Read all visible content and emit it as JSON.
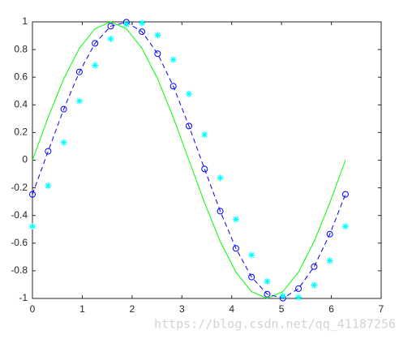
{
  "chart_data": {
    "type": "line",
    "x": [
      0,
      0.3142,
      0.6283,
      0.9425,
      1.2566,
      1.5708,
      1.885,
      2.1991,
      2.5133,
      2.8274,
      3.1416,
      3.4558,
      3.7699,
      4.0841,
      4.3982,
      4.7124,
      5.0265,
      5.3407,
      5.6549,
      5.969,
      6.2832
    ],
    "series": [
      {
        "color": "#00ff00",
        "line": "solid",
        "marker": "none",
        "values": [
          0,
          0.309,
          0.588,
          0.809,
          0.951,
          1,
          0.951,
          0.809,
          0.588,
          0.309,
          0,
          -0.309,
          -0.588,
          -0.809,
          -0.951,
          -1,
          -0.951,
          -0.809,
          -0.588,
          -0.309,
          0
        ]
      },
      {
        "color": "#0000ff",
        "line": "dashed",
        "marker": "circle",
        "values": [
          -0.247,
          0.064,
          0.369,
          0.638,
          0.845,
          0.969,
          0.998,
          0.929,
          0.77,
          0.535,
          0.247,
          -0.064,
          -0.369,
          -0.638,
          -0.845,
          -0.969,
          -0.998,
          -0.929,
          -0.77,
          -0.535,
          -0.247
        ]
      },
      {
        "color": "#00ffff",
        "line": "none",
        "marker": "star",
        "values": [
          -0.479,
          -0.185,
          0.128,
          0.428,
          0.686,
          0.877,
          0.983,
          0.992,
          0.904,
          0.727,
          0.479,
          0.185,
          -0.128,
          -0.428,
          -0.686,
          -0.877,
          -0.983,
          -0.992,
          -0.904,
          -0.727,
          -0.479
        ]
      }
    ],
    "xlim": [
      0,
      7
    ],
    "xticks": [
      0,
      1,
      2,
      3,
      4,
      5,
      6,
      7
    ],
    "ylim": [
      -1,
      1
    ],
    "yticks": [
      -1,
      -0.8,
      -0.6,
      -0.4,
      -0.2,
      0,
      0.2,
      0.4,
      0.6,
      0.8,
      1
    ],
    "grid": false,
    "watermark": "https://blog.csdn.net/qq_41187256"
  }
}
